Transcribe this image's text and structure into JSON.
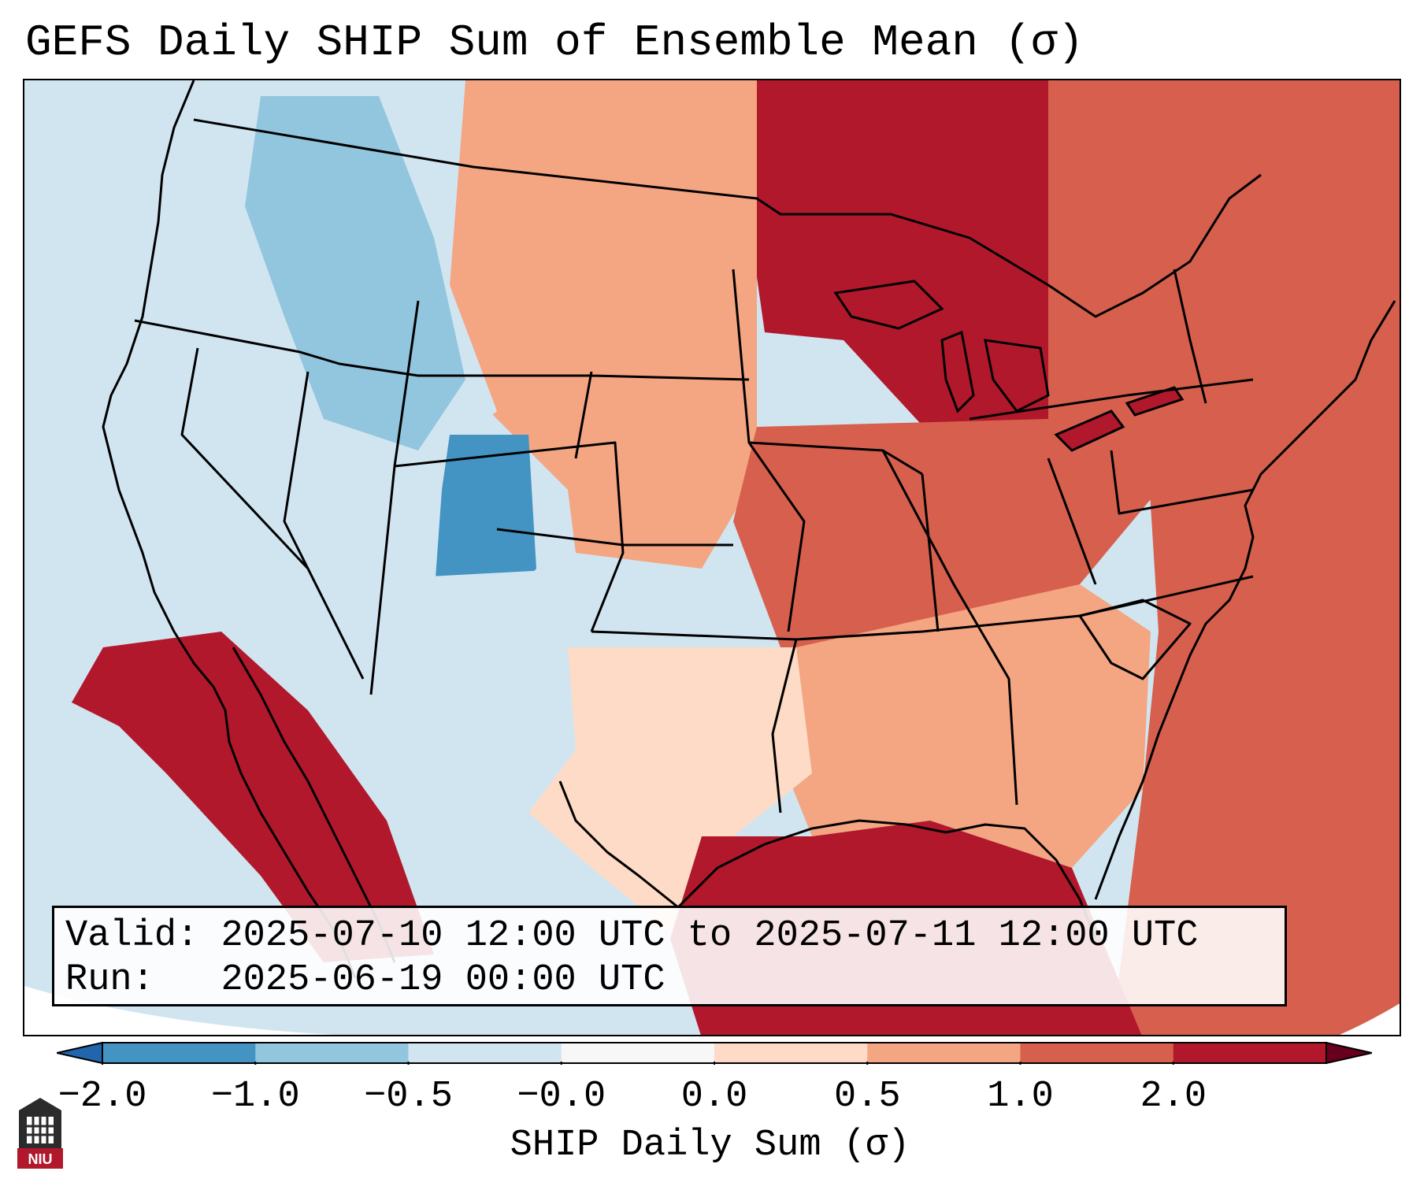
{
  "title": "GEFS Daily SHIP Sum of Ensemble Mean (σ)",
  "info": {
    "valid_label": "Valid:",
    "valid_value": "2025-07-10 12:00 UTC to 2025-07-11 12:00 UTC",
    "run_label": "Run:",
    "run_value": "2025-06-19 00:00 UTC"
  },
  "colorbar": {
    "label": "SHIP Daily Sum (σ)",
    "ticks": [
      "−2.0",
      "−1.0",
      "−0.5",
      "−0.0",
      "0.0",
      "0.5",
      "1.0",
      "2.0"
    ],
    "colors": [
      "#4393c3",
      "#92c5de",
      "#d1e5f0",
      "#f7f7f7",
      "#fddbc7",
      "#f4a582",
      "#d6604d",
      "#b2182b"
    ],
    "under_color": "#2166ac",
    "over_color": "#67001f"
  },
  "map_regions": {
    "pacific_ocean": "#d1e5f0",
    "pacific_northwest": "#d1e5f0",
    "northern_rockies": "#92c5de",
    "colorado": "#4393c3",
    "southwest": "#d1e5f0",
    "baja_california": "#b2182b",
    "texas": "#fddbc7",
    "northern_plains": "#f4a582",
    "upper_midwest": "#b2182b",
    "great_lakes": "#b2182b",
    "ohio_valley": "#d6604d",
    "southeast": "#f4a582",
    "atlantic_ocean": "#d6604d",
    "gulf_of_mexico": "#b2182b",
    "northeast": "#d6604d"
  },
  "logo_text": "NIU"
}
